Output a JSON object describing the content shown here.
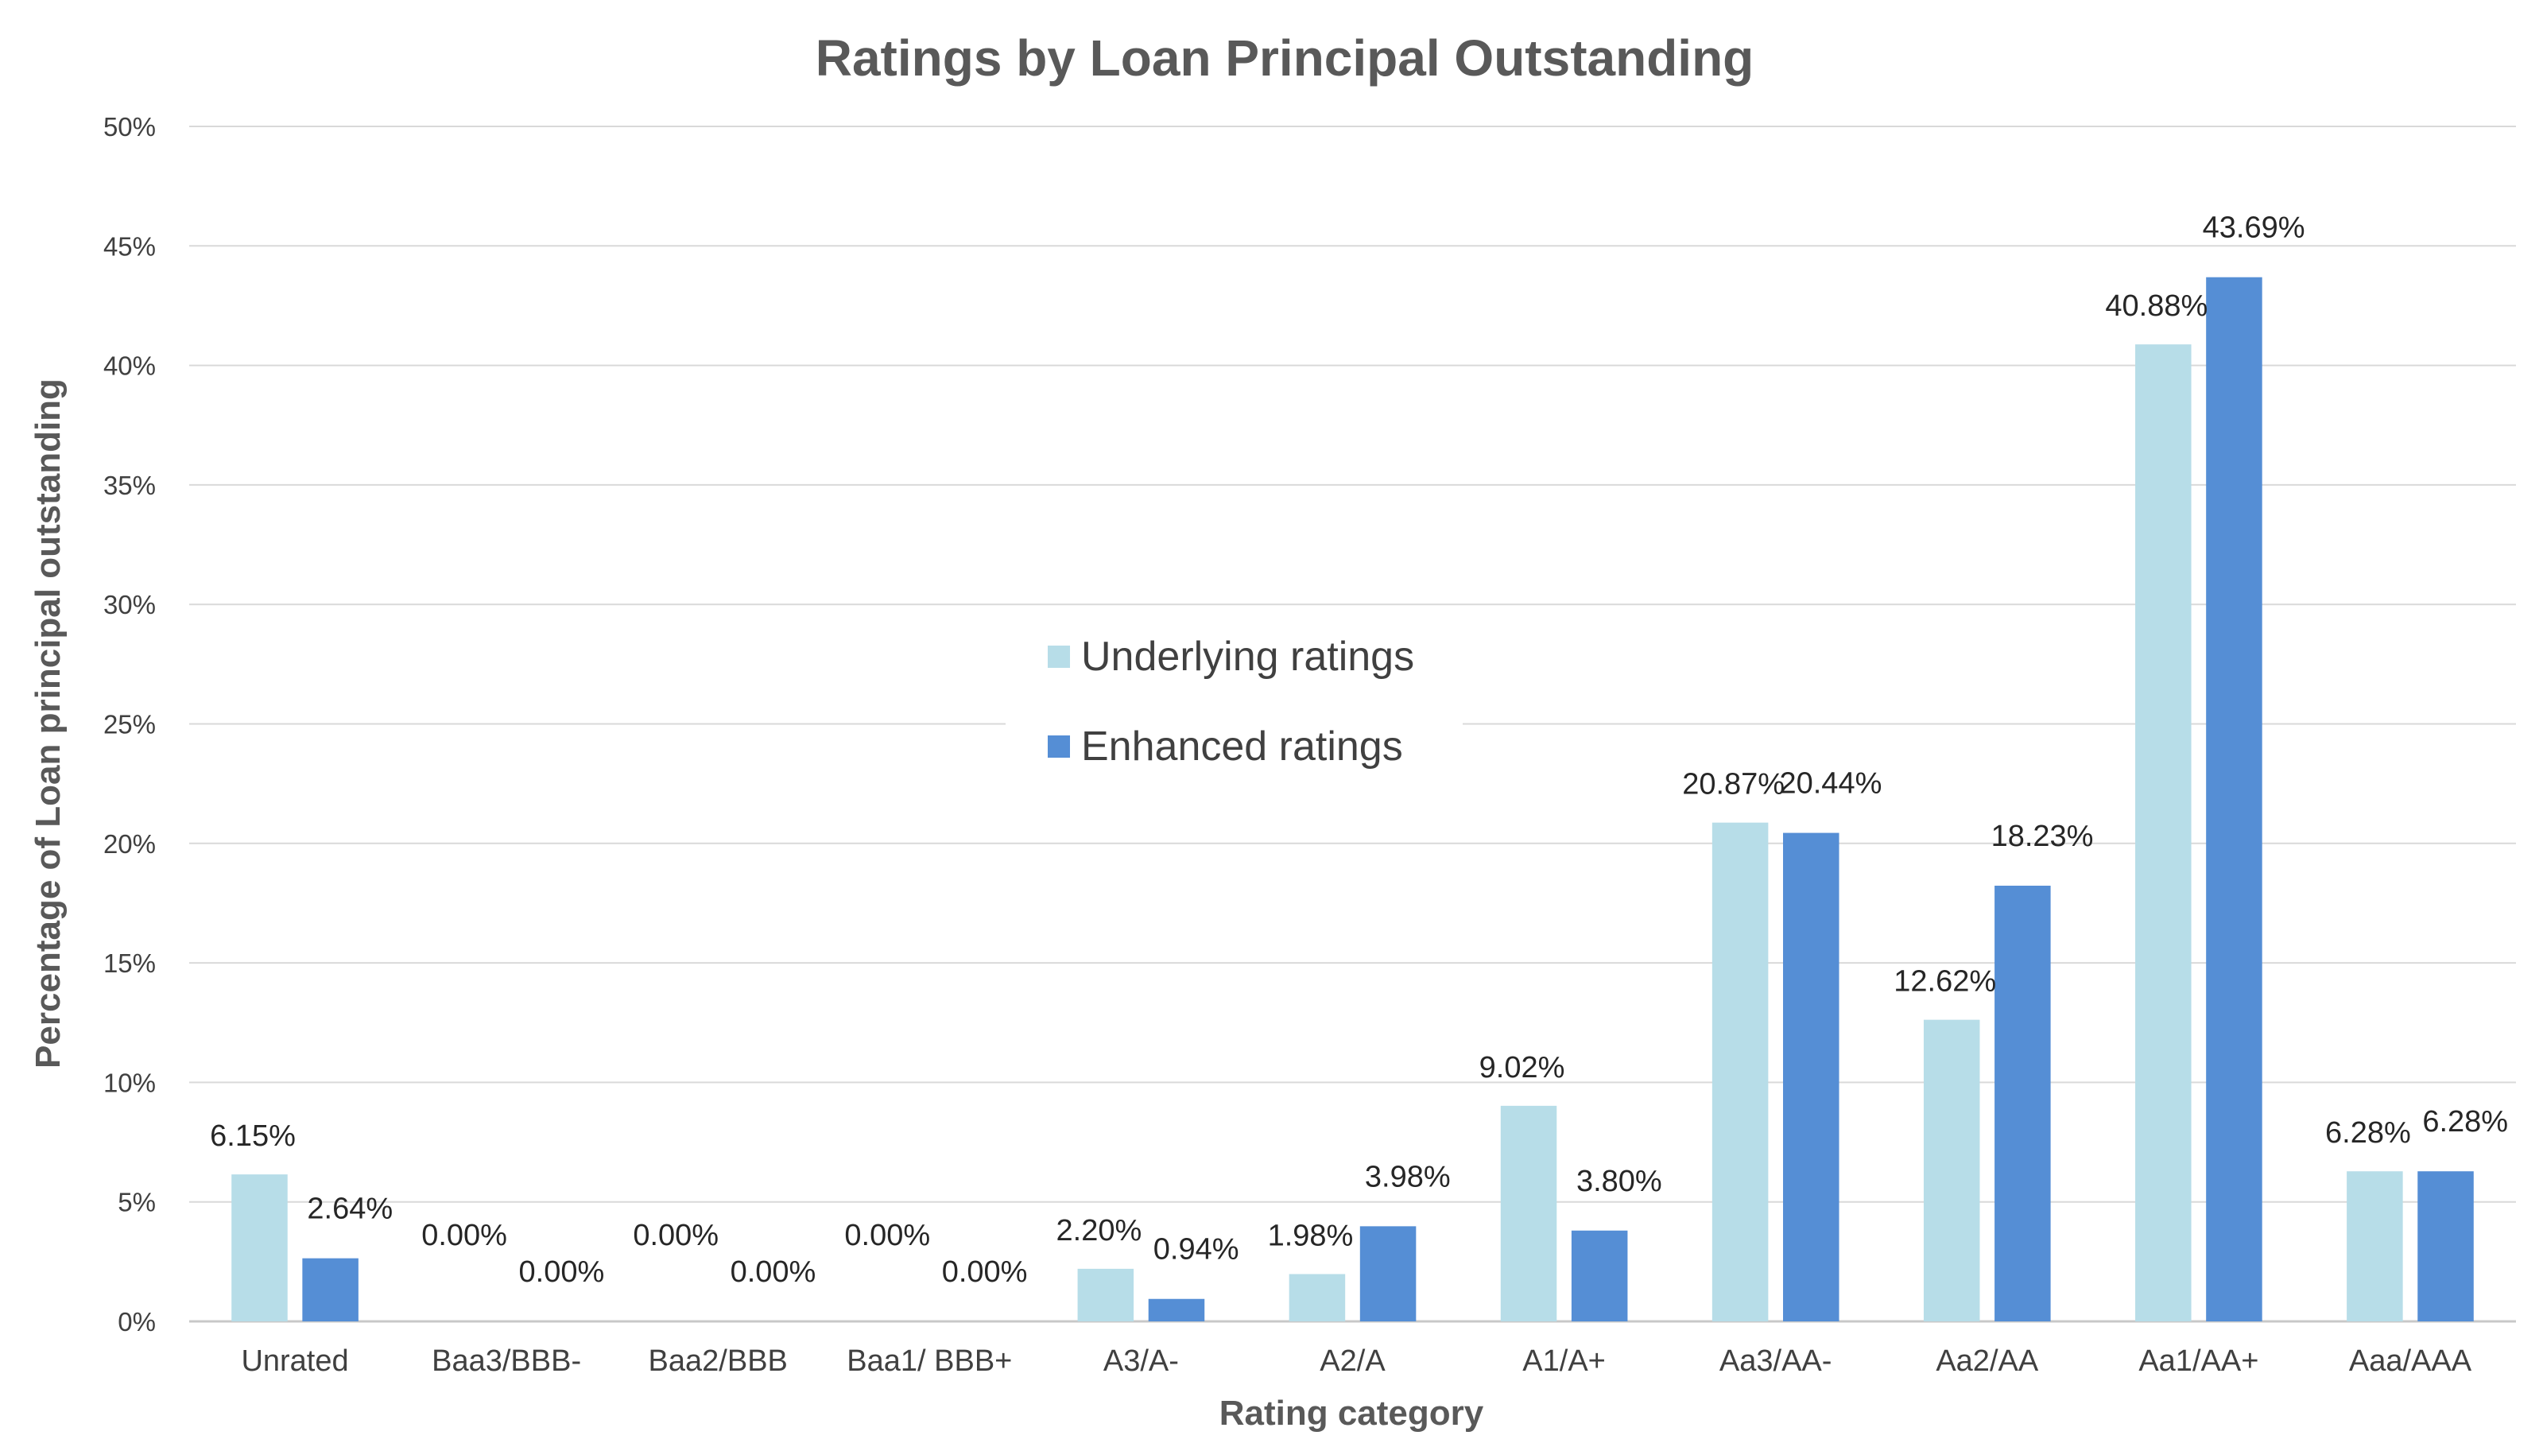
{
  "chart_data": {
    "type": "bar",
    "title": "Ratings by Loan Principal Outstanding",
    "xlabel": "Rating category",
    "ylabel": "Percentage of Loan principal outstanding",
    "ylim": [
      0,
      50
    ],
    "yticks": [
      "0%",
      "5%",
      "10%",
      "15%",
      "20%",
      "25%",
      "30%",
      "35%",
      "40%",
      "45%",
      "50%"
    ],
    "grid": true,
    "legend_position": "center",
    "categories": [
      "Unrated",
      "Baa3/BBB-",
      "Baa2/BBB",
      "Baa1/ BBB+",
      "A3/A-",
      "A2/A",
      "A1/A+",
      "Aa3/AA-",
      "Aa2/AA",
      "Aa1/AA+",
      "Aaa/AAA"
    ],
    "series": [
      {
        "name": "Underlying ratings",
        "color": "#b7dde8",
        "values": [
          6.15,
          0.0,
          0.0,
          0.0,
          2.2,
          1.98,
          9.02,
          20.87,
          12.62,
          40.88,
          6.28
        ],
        "labels": [
          "6.15%",
          "0.00%",
          "0.00%",
          "0.00%",
          "2.20%",
          "1.98%",
          "9.02%",
          "20.87%",
          "12.62%",
          "40.88%",
          "6.28%"
        ]
      },
      {
        "name": "Enhanced ratings",
        "color": "#558ed5",
        "values": [
          2.64,
          0.0,
          0.0,
          0.0,
          0.94,
          3.98,
          3.8,
          20.44,
          18.23,
          43.69,
          6.28
        ],
        "labels": [
          "2.64%",
          "0.00%",
          "0.00%",
          "0.00%",
          "0.94%",
          "3.98%",
          "3.80%",
          "20.44%",
          "18.23%",
          "43.69%",
          "6.28%"
        ]
      }
    ]
  }
}
